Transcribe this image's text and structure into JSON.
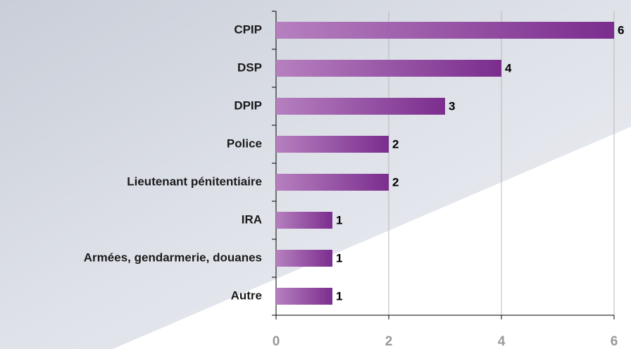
{
  "chart_data": {
    "type": "bar",
    "orientation": "horizontal",
    "categories": [
      "CPIP",
      "DSP",
      "DPIP",
      "Police",
      "Lieutenant pénitentiaire",
      "IRA",
      "Armées, gendarmerie, douanes",
      "Autre"
    ],
    "values": [
      6,
      4,
      3,
      2,
      2,
      1,
      1,
      1
    ],
    "color": "#7b2d8e",
    "xlim": [
      0,
      6
    ],
    "xticks": [
      0,
      2,
      4,
      6
    ],
    "grid": true
  }
}
